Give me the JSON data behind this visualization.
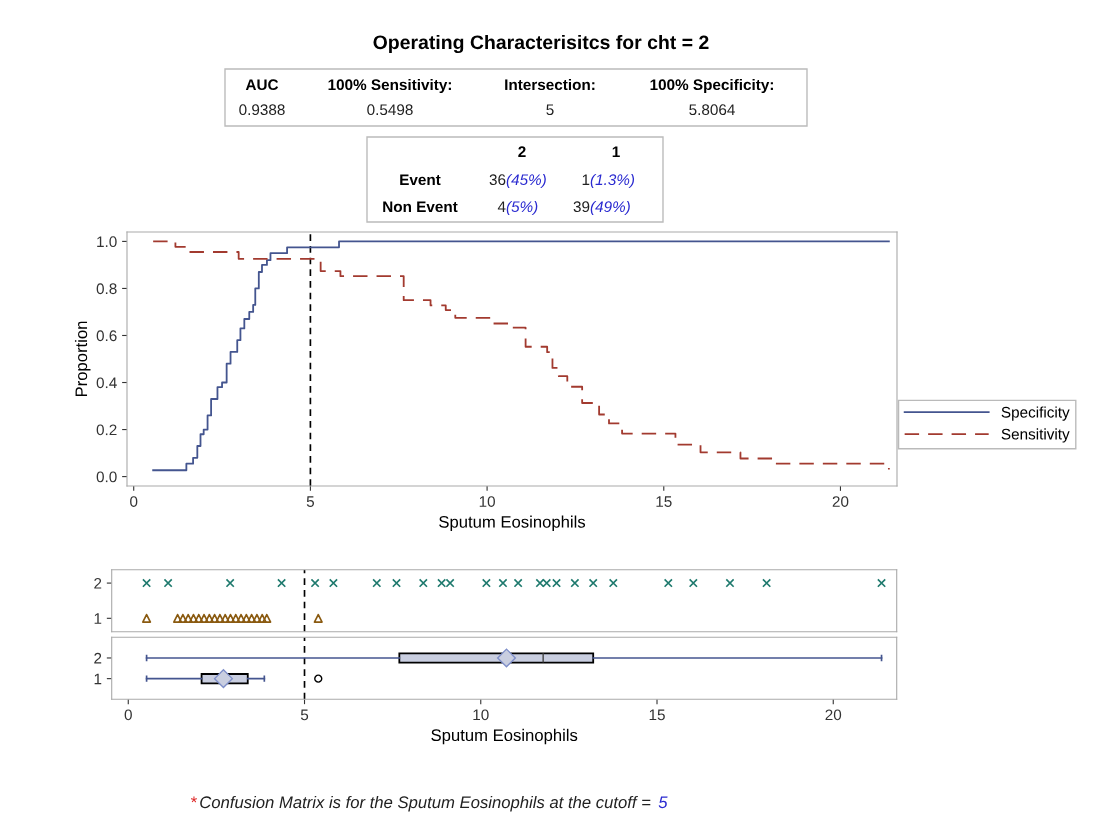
{
  "chart_data": [
    {
      "type": "step",
      "title": "Operating Characterisitcs for cht = 2",
      "annotations": [
        "AUC",
        "100% Sensitivity:",
        "Intersection:",
        "100% Specificity:",
        "0.9388",
        "0.5498",
        "5",
        "5.8064",
        "2",
        "1",
        "Event",
        "36",
        "(45%)",
        "1",
        "(1.3%)",
        "Non Event",
        "4",
        "(5%)",
        "39",
        "(49%)"
      ],
      "xlabel": "Sputum Eosinophils",
      "ylabel": "Proportion",
      "xlim": [
        -0.19,
        21.6
      ],
      "xticks": [
        0,
        5,
        10,
        15,
        20
      ],
      "ylim": [
        -0.04,
        1.04
      ],
      "yticks": [
        {
          "value": 0,
          "label": "0.0"
        },
        {
          "value": 0.2,
          "label": "0.2"
        },
        {
          "value": 0.4,
          "label": "0.4"
        },
        {
          "value": 0.6,
          "label": "0.6"
        },
        {
          "value": 0.8,
          "label": "0.8"
        },
        {
          "value": 1,
          "label": "1.0"
        }
      ],
      "legend": "right",
      "ref_lines": [
        {
          "axis": "x",
          "value": 5,
          "color": "#000000",
          "line_style": "dashed"
        }
      ],
      "series": [
        {
          "name": "Specificity",
          "color": "#44558f",
          "line_style": "solid",
          "x": [
            0.55,
            1.49,
            1.68,
            1.8,
            1.89,
            1.98,
            2.09,
            2.19,
            2.37,
            2.5,
            2.63,
            2.74,
            2.93,
            3.02,
            3.13,
            3.27,
            3.38,
            3.44,
            3.54,
            3.63,
            3.77,
            3.87,
            4.34,
            5.81,
            21.37
          ],
          "values": [
            0.027,
            0.055,
            0.08,
            0.13,
            0.18,
            0.2,
            0.26,
            0.33,
            0.38,
            0.4,
            0.48,
            0.53,
            0.58,
            0.63,
            0.67,
            0.7,
            0.73,
            0.8,
            0.87,
            0.9,
            0.92,
            0.95,
            0.975,
            1.0,
            1.0
          ]
        },
        {
          "name": "Sensitivity",
          "color": "#a23a2f",
          "line_style": "dashed",
          "x": [
            0.55,
            1.18,
            1.47,
            2.97,
            5.29,
            5.85,
            7.64,
            8.4,
            8.83,
            9.1,
            10.14,
            10.62,
            11.09,
            11.7,
            11.85,
            12.03,
            12.27,
            12.69,
            13.17,
            13.45,
            13.82,
            15.33,
            16.04,
            17.17,
            18.11,
            21.37
          ],
          "values": [
            1.0,
            0.977,
            0.955,
            0.926,
            0.874,
            0.852,
            0.75,
            0.728,
            0.708,
            0.675,
            0.651,
            0.633,
            0.552,
            0.529,
            0.462,
            0.427,
            0.382,
            0.313,
            0.264,
            0.226,
            0.183,
            0.136,
            0.103,
            0.077,
            0.055,
            0.03
          ]
        }
      ]
    },
    {
      "type": "scatter",
      "xlim": [
        -0.47,
        21.8
      ],
      "ylim": [
        0.62,
        2.38
      ],
      "yticks": [
        1,
        2
      ],
      "tick_labels": "y",
      "ref_lines": [
        {
          "axis": "x",
          "value": 5,
          "color": "#000000",
          "line_style": "dashed"
        }
      ],
      "series": [
        {
          "color": "#1f7a6e",
          "marker": "cross",
          "x": [
            0.52,
            1.13,
            2.89,
            4.35,
            5.3,
            5.82,
            7.05,
            7.61,
            8.37,
            8.89,
            9.13,
            10.16,
            10.63,
            11.06,
            11.68,
            11.87,
            12.15,
            12.67,
            13.19,
            13.76,
            15.32,
            16.03,
            17.07,
            18.11,
            21.37
          ],
          "values": [
            2,
            2,
            2,
            2,
            2,
            2,
            2,
            2,
            2,
            2,
            2,
            2,
            2,
            2,
            2,
            2,
            2,
            2,
            2,
            2,
            2,
            2,
            2,
            2,
            2
          ]
        },
        {
          "color": "#8a5a10",
          "marker": "triangle",
          "x": [
            0.52,
            1.4,
            1.55,
            1.7,
            1.85,
            2.0,
            2.15,
            2.3,
            2.45,
            2.6,
            2.75,
            2.9,
            3.05,
            3.2,
            3.35,
            3.5,
            3.65,
            3.8,
            3.93,
            5.39
          ],
          "values": [
            1,
            1,
            1,
            1,
            1,
            1,
            1,
            1,
            1,
            1,
            1,
            1,
            1,
            1,
            1,
            1,
            1,
            1,
            1,
            1
          ]
        }
      ]
    },
    {
      "type": "box",
      "orientation": "horizontal",
      "categories": [
        "2",
        "1"
      ],
      "xlabel": "Sputum Eosinophils",
      "xlim": [
        -0.47,
        21.8
      ],
      "xticks": [
        0,
        5,
        10,
        15,
        20
      ],
      "annotations": [
        "*",
        "Confusion Matrix is for the Sputum Eosinophils at the cutoff = ",
        "5"
      ],
      "ref_lines": [
        {
          "axis": "x",
          "value": 5,
          "color": "#000000",
          "line_style": "dashed"
        }
      ],
      "series": [
        {
          "color": "#c9cee0",
          "boxes": [
            {
              "low": 0.52,
              "q1": 7.69,
              "median": 11.77,
              "q3": 13.19,
              "high": 21.37,
              "mean": 10.73
            },
            {
              "low": 0.52,
              "q1": 2.08,
              "median": 2.7,
              "q3": 3.39,
              "high": 3.86,
              "mean": 2.7,
              "outliers": [
                5.39
              ]
            }
          ]
        }
      ]
    }
  ]
}
